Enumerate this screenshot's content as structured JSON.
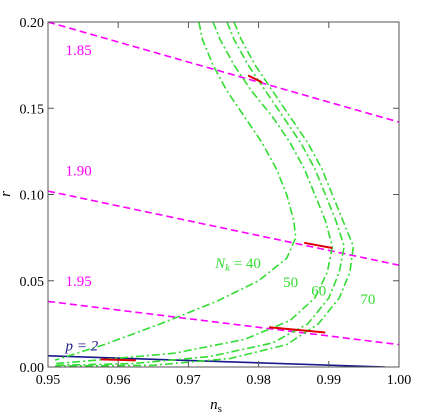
{
  "chart_data": {
    "type": "line",
    "xlabel": "n",
    "xlabel_sub": "s",
    "ylabel": "r",
    "xlim": [
      0.95,
      1.0
    ],
    "ylim": [
      0.0,
      0.2
    ],
    "xticks": [
      {
        "value": 0.95,
        "label": "0.95"
      },
      {
        "value": 0.96,
        "label": "0.96"
      },
      {
        "value": 0.97,
        "label": "0.97"
      },
      {
        "value": 0.98,
        "label": "0.98"
      },
      {
        "value": 0.99,
        "label": "0.99"
      },
      {
        "value": 1.0,
        "label": "1.00"
      }
    ],
    "yticks": [
      {
        "value": 0.0,
        "label": "0.00"
      },
      {
        "value": 0.05,
        "label": "0.05"
      },
      {
        "value": 0.1,
        "label": "0.10"
      },
      {
        "value": 0.15,
        "label": "0.15"
      },
      {
        "value": 0.2,
        "label": "0.20"
      }
    ],
    "grid": false,
    "colors": {
      "magenta": "#ff00ff",
      "green": "#33dd33",
      "red": "#dd0000",
      "navy": "#1a1a8c"
    },
    "magenta_lines": [
      {
        "label": "1.85",
        "x": [
          0.95,
          1.0
        ],
        "y": [
          0.2,
          0.142
        ]
      },
      {
        "label": "1.90",
        "x": [
          0.95,
          1.0
        ],
        "y": [
          0.102,
          0.059
        ]
      },
      {
        "label": "1.95",
        "x": [
          0.95,
          1.0
        ],
        "y": [
          0.038,
          0.013
        ]
      }
    ],
    "navy_line": {
      "label": "p = 2",
      "x": [
        0.95,
        0.998
      ],
      "y": [
        0.0065,
        0.0
      ]
    },
    "green_curves": [
      {
        "label": "N_k = 40",
        "x": [
          0.9715,
          0.972,
          0.9735,
          0.9755,
          0.978,
          0.9805,
          0.9825,
          0.984,
          0.985,
          0.9853,
          0.984,
          0.98,
          0.974,
          0.966,
          0.958,
          0.951
        ],
        "y": [
          0.2,
          0.19,
          0.175,
          0.16,
          0.145,
          0.13,
          0.115,
          0.1,
          0.085,
          0.075,
          0.063,
          0.05,
          0.038,
          0.025,
          0.013,
          0.004
        ]
      },
      {
        "label": "50",
        "x": [
          0.9735,
          0.9745,
          0.9765,
          0.979,
          0.982,
          0.9845,
          0.9865,
          0.988,
          0.9895,
          0.9905,
          0.9898,
          0.988,
          0.9845,
          0.978,
          0.968,
          0.957,
          0.951
        ],
        "y": [
          0.2,
          0.19,
          0.175,
          0.16,
          0.145,
          0.13,
          0.115,
          0.1,
          0.085,
          0.07,
          0.055,
          0.04,
          0.027,
          0.016,
          0.008,
          0.004,
          0.002
        ]
      },
      {
        "label": "60",
        "x": [
          0.9755,
          0.9765,
          0.9785,
          0.981,
          0.9835,
          0.986,
          0.988,
          0.9895,
          0.991,
          0.9922,
          0.9915,
          0.99,
          0.987,
          0.982,
          0.973,
          0.962,
          0.951
        ],
        "y": [
          0.2,
          0.19,
          0.175,
          0.16,
          0.145,
          0.13,
          0.115,
          0.1,
          0.085,
          0.07,
          0.055,
          0.04,
          0.025,
          0.014,
          0.006,
          0.002,
          0.001
        ]
      },
      {
        "label": "70",
        "x": [
          0.9765,
          0.9775,
          0.9795,
          0.982,
          0.9845,
          0.987,
          0.989,
          0.9905,
          0.992,
          0.9935,
          0.993,
          0.9915,
          0.9885,
          0.984,
          0.976,
          0.965,
          0.951
        ],
        "y": [
          0.2,
          0.19,
          0.175,
          0.16,
          0.145,
          0.13,
          0.115,
          0.1,
          0.085,
          0.07,
          0.055,
          0.04,
          0.025,
          0.013,
          0.005,
          0.001,
          0.0005
        ]
      }
    ],
    "red_segments": [
      {
        "x": [
          0.9785,
          0.9805
        ],
        "y": [
          0.169,
          0.165
        ]
      },
      {
        "x": [
          0.9865,
          0.9905
        ],
        "y": [
          0.072,
          0.069
        ]
      },
      {
        "x": [
          0.9815,
          0.9895
        ],
        "y": [
          0.023,
          0.02
        ]
      },
      {
        "x": [
          0.9575,
          0.9625
        ],
        "y": [
          0.0044,
          0.0038
        ]
      }
    ],
    "annotations": [
      {
        "text": "1.85",
        "x": 0.9525,
        "y": 0.181,
        "color": "magenta"
      },
      {
        "text": "1.90",
        "x": 0.9525,
        "y": 0.111,
        "color": "magenta"
      },
      {
        "text": "1.95",
        "x": 0.9525,
        "y": 0.047,
        "color": "magenta"
      },
      {
        "text": "p = 2",
        "x": 0.9525,
        "y": 0.0095,
        "color": "navy"
      },
      {
        "text": "N",
        "sub": "k",
        "suffix": " = 40",
        "x": 0.9738,
        "y": 0.0575,
        "color": "green"
      },
      {
        "text": "50",
        "x": 0.9835,
        "y": 0.0465,
        "color": "green"
      },
      {
        "text": "60",
        "x": 0.9875,
        "y": 0.0415,
        "color": "green"
      },
      {
        "text": "70",
        "x": 0.9945,
        "y": 0.0365,
        "color": "green"
      }
    ]
  }
}
